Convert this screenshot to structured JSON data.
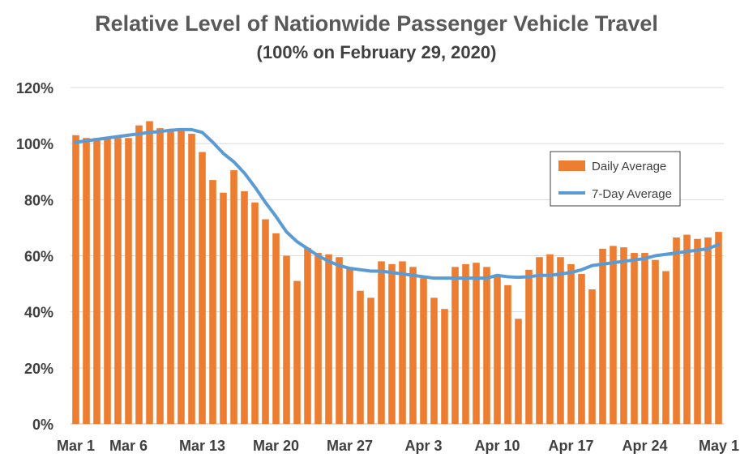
{
  "chart_data": {
    "type": "bar",
    "title": "Relative Level of Nationwide Passenger Vehicle Travel",
    "subtitle": "(100% on February 29, 2020)",
    "xlabel": "",
    "ylabel": "",
    "ylim": [
      0,
      120
    ],
    "y_tick_values": [
      0,
      20,
      40,
      60,
      80,
      100,
      120
    ],
    "y_tick_labels": [
      "0%",
      "20%",
      "40%",
      "60%",
      "80%",
      "100%",
      "120%"
    ],
    "x_tick_labels": [
      {
        "label": "Mar 1",
        "index": 0
      },
      {
        "label": "Mar 6",
        "index": 5
      },
      {
        "label": "Mar 13",
        "index": 12
      },
      {
        "label": "Mar 20",
        "index": 19
      },
      {
        "label": "Mar 27",
        "index": 26
      },
      {
        "label": "Apr 3",
        "index": 33
      },
      {
        "label": "Apr 10",
        "index": 40
      },
      {
        "label": "Apr 17",
        "index": 47
      },
      {
        "label": "Apr 24",
        "index": 54
      },
      {
        "label": "May 1",
        "index": 61
      }
    ],
    "grid": "horizontal",
    "legend_position": "right-middle",
    "series": [
      {
        "name": "Daily Average",
        "kind": "bar",
        "color": "#ED7D31",
        "values": [
          103,
          102,
          102,
          102,
          102,
          102,
          106.5,
          108,
          105.5,
          105,
          105.5,
          103.5,
          97,
          87,
          82.5,
          90.5,
          83,
          79,
          73,
          68,
          60,
          51,
          62.8,
          61,
          60.5,
          59.5,
          56,
          47.5,
          45,
          58,
          57,
          58,
          56,
          52,
          45,
          41,
          56,
          57,
          57.5,
          56,
          53,
          49.5,
          37.5,
          55,
          59.5,
          60.5,
          59.5,
          57,
          53.5,
          48,
          62.5,
          63.5,
          63,
          61,
          61,
          58.5,
          54.5,
          66.5,
          67.5,
          66,
          66.5,
          68.5
        ]
      },
      {
        "name": "7-Day Average",
        "kind": "line",
        "color": "#5B9BD5",
        "values": [
          100.5,
          101,
          101.5,
          102,
          102.5,
          103,
          103.5,
          104,
          104.3,
          104.8,
          105,
          105,
          104,
          100.5,
          96.5,
          93.5,
          89.5,
          84.5,
          79,
          74,
          68.5,
          65,
          62.5,
          60,
          58,
          56.5,
          55.5,
          55,
          54.5,
          54.5,
          54,
          53.5,
          53,
          52.5,
          52,
          52,
          52,
          52,
          52,
          52,
          53,
          52.5,
          52.3,
          52.5,
          53,
          53,
          53.5,
          54,
          55,
          56.5,
          57,
          57.5,
          58,
          58.5,
          59,
          60,
          60.5,
          61,
          61.5,
          62,
          62.5,
          64
        ]
      }
    ]
  }
}
